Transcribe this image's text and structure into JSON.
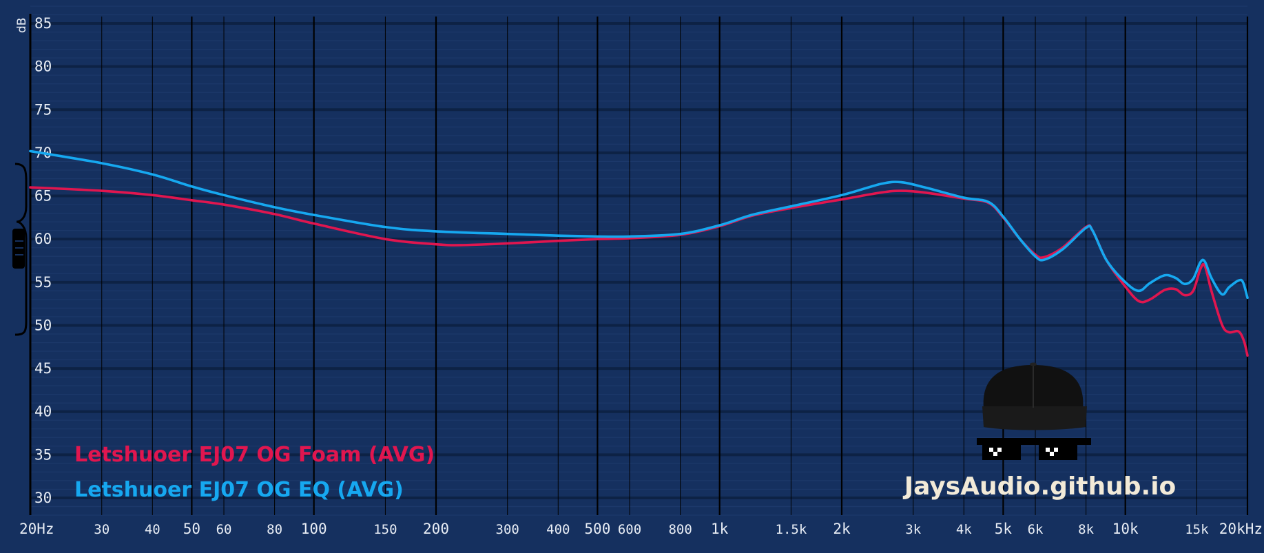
{
  "chart_data": {
    "type": "line",
    "xscale": "log",
    "xlim": [
      20,
      20000
    ],
    "ylim": [
      28,
      87
    ],
    "ylabel": "dB",
    "yticks": [
      30,
      35,
      40,
      45,
      50,
      55,
      60,
      65,
      70,
      75,
      80,
      85
    ],
    "xticks": [
      {
        "value": 20,
        "label": "20Hz",
        "major": true
      },
      {
        "value": 30,
        "label": "30",
        "major": false
      },
      {
        "value": 40,
        "label": "40",
        "major": false
      },
      {
        "value": 50,
        "label": "50",
        "major": true
      },
      {
        "value": 60,
        "label": "60",
        "major": false
      },
      {
        "value": 80,
        "label": "80",
        "major": false
      },
      {
        "value": 100,
        "label": "100",
        "major": true
      },
      {
        "value": 150,
        "label": "150",
        "major": false
      },
      {
        "value": 200,
        "label": "200",
        "major": true
      },
      {
        "value": 300,
        "label": "300",
        "major": false
      },
      {
        "value": 400,
        "label": "400",
        "major": false
      },
      {
        "value": 500,
        "label": "500",
        "major": true
      },
      {
        "value": 600,
        "label": "600",
        "major": false
      },
      {
        "value": 800,
        "label": "800",
        "major": false
      },
      {
        "value": 1000,
        "label": "1k",
        "major": true
      },
      {
        "value": 1500,
        "label": "1.5k",
        "major": false
      },
      {
        "value": 2000,
        "label": "2k",
        "major": true
      },
      {
        "value": 3000,
        "label": "3k",
        "major": false
      },
      {
        "value": 4000,
        "label": "4k",
        "major": false
      },
      {
        "value": 5000,
        "label": "5k",
        "major": true
      },
      {
        "value": 6000,
        "label": "6k",
        "major": false
      },
      {
        "value": 8000,
        "label": "8k",
        "major": false
      },
      {
        "value": 10000,
        "label": "10k",
        "major": true
      },
      {
        "value": 15000,
        "label": "15k",
        "major": false
      },
      {
        "value": 20000,
        "label": "20kHz",
        "major": true
      }
    ],
    "grid": true,
    "legend_position": "bottom-left",
    "series": [
      {
        "name": "Letshuoer EJ07 OG Foam (AVG)",
        "color": "#e0164f",
        "points": [
          [
            20,
            66
          ],
          [
            30,
            65.6
          ],
          [
            40,
            65.1
          ],
          [
            50,
            64.5
          ],
          [
            60,
            64
          ],
          [
            80,
            62.9
          ],
          [
            100,
            61.8
          ],
          [
            150,
            60
          ],
          [
            200,
            59.4
          ],
          [
            230,
            59.3
          ],
          [
            300,
            59.5
          ],
          [
            400,
            59.8
          ],
          [
            500,
            60
          ],
          [
            600,
            60.1
          ],
          [
            800,
            60.5
          ],
          [
            1000,
            61.5
          ],
          [
            1200,
            62.7
          ],
          [
            1500,
            63.6
          ],
          [
            2000,
            64.6
          ],
          [
            2500,
            65.4
          ],
          [
            2800,
            65.6
          ],
          [
            3200,
            65.4
          ],
          [
            4000,
            64.7
          ],
          [
            4600,
            64.2
          ],
          [
            5000,
            62.5
          ],
          [
            5500,
            60
          ],
          [
            6000,
            58.2
          ],
          [
            6300,
            57.9
          ],
          [
            7000,
            59
          ],
          [
            8000,
            61.4
          ],
          [
            8300,
            61
          ],
          [
            9000,
            57.5
          ],
          [
            10000,
            54.5
          ],
          [
            10800,
            52.8
          ],
          [
            11500,
            53
          ],
          [
            12500,
            54.1
          ],
          [
            13300,
            54.2
          ],
          [
            14000,
            53.5
          ],
          [
            14700,
            54
          ],
          [
            15300,
            56.5
          ],
          [
            15700,
            56.9
          ],
          [
            16300,
            54
          ],
          [
            17300,
            50.1
          ],
          [
            18000,
            49.2
          ],
          [
            19000,
            49.3
          ],
          [
            19600,
            48.2
          ],
          [
            20000,
            46.5
          ]
        ]
      },
      {
        "name": "Letshuoer EJ07 OG EQ (AVG)",
        "color": "#16a8f0",
        "points": [
          [
            20,
            70.2
          ],
          [
            30,
            68.8
          ],
          [
            40,
            67.5
          ],
          [
            50,
            66.1
          ],
          [
            60,
            65.1
          ],
          [
            80,
            63.7
          ],
          [
            100,
            62.8
          ],
          [
            150,
            61.4
          ],
          [
            200,
            60.9
          ],
          [
            300,
            60.6
          ],
          [
            400,
            60.4
          ],
          [
            500,
            60.3
          ],
          [
            600,
            60.3
          ],
          [
            800,
            60.6
          ],
          [
            1000,
            61.6
          ],
          [
            1200,
            62.8
          ],
          [
            1500,
            63.8
          ],
          [
            2000,
            65.1
          ],
          [
            2500,
            66.4
          ],
          [
            2800,
            66.6
          ],
          [
            3200,
            66
          ],
          [
            4000,
            64.8
          ],
          [
            4600,
            64.3
          ],
          [
            5000,
            62.6
          ],
          [
            5500,
            60
          ],
          [
            6000,
            58
          ],
          [
            6300,
            57.6
          ],
          [
            7000,
            58.8
          ],
          [
            8000,
            61.3
          ],
          [
            8300,
            61
          ],
          [
            9000,
            57.5
          ],
          [
            10000,
            55
          ],
          [
            10800,
            54
          ],
          [
            11500,
            54.9
          ],
          [
            12500,
            55.8
          ],
          [
            13300,
            55.5
          ],
          [
            14000,
            54.8
          ],
          [
            14700,
            55.4
          ],
          [
            15300,
            57.3
          ],
          [
            15700,
            57.4
          ],
          [
            16300,
            55.5
          ],
          [
            17300,
            53.6
          ],
          [
            18000,
            54.4
          ],
          [
            19000,
            55.2
          ],
          [
            19500,
            55
          ],
          [
            20000,
            53.2
          ]
        ]
      }
    ]
  },
  "watermark": "JaysAudio.github.io"
}
